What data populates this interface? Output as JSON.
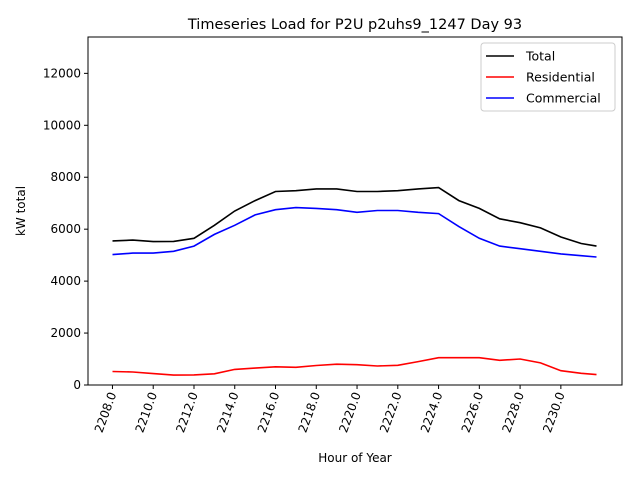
{
  "chart_data": {
    "type": "line",
    "title": "Timeseries Load for P2U p2uhs9_1247  Day 93",
    "xlabel": "Hour of Year",
    "ylabel": "kW total",
    "xlim": [
      2206.8,
      2233.0
    ],
    "ylim": [
      0,
      13400
    ],
    "xticks": [
      2208,
      2210,
      2212,
      2214,
      2216,
      2218,
      2220,
      2222,
      2224,
      2226,
      2228,
      2230
    ],
    "xtick_labels": [
      "2208.0",
      "2210.0",
      "2212.0",
      "2214.0",
      "2216.0",
      "2218.0",
      "2220.0",
      "2222.0",
      "2224.0",
      "2226.0",
      "2228.0",
      "2230.0"
    ],
    "yticks": [
      0,
      2000,
      4000,
      6000,
      8000,
      10000,
      12000
    ],
    "ytick_labels": [
      "0",
      "2000",
      "4000",
      "6000",
      "8000",
      "10000",
      "12000"
    ],
    "grid": false,
    "legend_position": "top-right",
    "x": [
      2208,
      2209,
      2210,
      2211,
      2212,
      2213,
      2214,
      2215,
      2216,
      2217,
      2218,
      2219,
      2220,
      2221,
      2222,
      2223,
      2224,
      2225,
      2226,
      2227,
      2228,
      2229,
      2230,
      2231,
      2231.75
    ],
    "series": [
      {
        "name": "Total",
        "color": "#000000",
        "values": [
          5550,
          5580,
          5520,
          5530,
          5650,
          6150,
          6700,
          7100,
          7450,
          7480,
          7550,
          7550,
          7450,
          7450,
          7480,
          7550,
          7600,
          7100,
          6800,
          6400,
          6250,
          6050,
          5700,
          5450,
          5350
        ]
      },
      {
        "name": "Residential",
        "color": "#ff0000",
        "values": [
          520,
          500,
          440,
          380,
          390,
          430,
          600,
          650,
          700,
          680,
          750,
          800,
          780,
          730,
          760,
          900,
          1050,
          1050,
          1050,
          950,
          1000,
          850,
          550,
          450,
          400
        ]
      },
      {
        "name": "Commercial",
        "color": "#0000ff",
        "values": [
          5020,
          5080,
          5080,
          5150,
          5350,
          5800,
          6150,
          6550,
          6750,
          6830,
          6800,
          6750,
          6650,
          6720,
          6720,
          6650,
          6600,
          6100,
          5650,
          5350,
          5250,
          5150,
          5050,
          4980,
          4930
        ]
      }
    ]
  }
}
